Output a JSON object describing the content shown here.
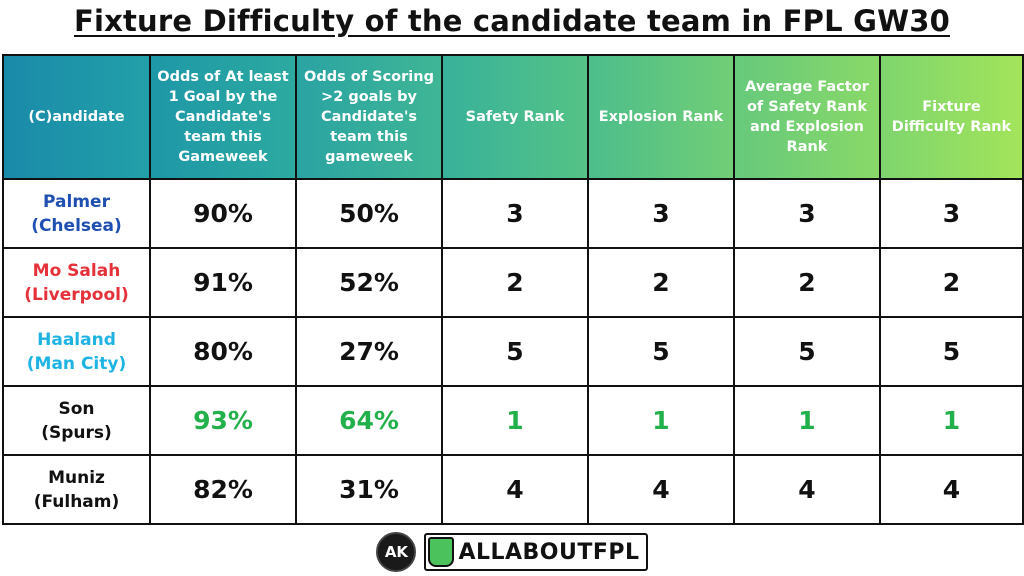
{
  "title": "Fixture Difficulty of the candidate team in FPL GW30",
  "colors": {
    "header_start": "#1b8fa8",
    "header_end": "#9be15d",
    "chelsea": "#1f4fb0",
    "liverpool": "#e5323a",
    "mancity": "#1fb3e3",
    "spurs": "#111111",
    "fulham": "#111111",
    "best": "#22b04b"
  },
  "chart_data": {
    "type": "table",
    "columns": [
      "(C)andidate",
      "Odds of At least 1 Goal by the Candidate's team this Gameweek",
      "Odds of Scoring >2 goals by Candidate's team this gameweek",
      "Safety Rank",
      "Explosion Rank",
      "Average Factor of Safety Rank and Explosion Rank",
      "Fixture Difficulty Rank"
    ],
    "rows": [
      {
        "player": "Palmer",
        "team": "(Chelsea)",
        "color": "#1f4fb0",
        "highlight": false,
        "values": [
          "90%",
          "50%",
          "3",
          "3",
          "3",
          "3"
        ]
      },
      {
        "player": "Mo Salah",
        "team": "(Liverpool)",
        "color": "#e5323a",
        "highlight": false,
        "values": [
          "91%",
          "52%",
          "2",
          "2",
          "2",
          "2"
        ]
      },
      {
        "player": "Haaland",
        "team": "(Man City)",
        "color": "#1fb3e3",
        "highlight": false,
        "values": [
          "80%",
          "27%",
          "5",
          "5",
          "5",
          "5"
        ]
      },
      {
        "player": "Son",
        "team": "(Spurs)",
        "color": "#111111",
        "highlight": true,
        "values": [
          "93%",
          "64%",
          "1",
          "1",
          "1",
          "1"
        ]
      },
      {
        "player": "Muniz",
        "team": "(Fulham)",
        "color": "#111111",
        "highlight": false,
        "values": [
          "82%",
          "31%",
          "4",
          "4",
          "4",
          "4"
        ]
      }
    ]
  },
  "footer": {
    "ak_logo": "AK",
    "brand": "ALLABOUTFPL",
    "brand_icon": "shield-logo-icon"
  }
}
